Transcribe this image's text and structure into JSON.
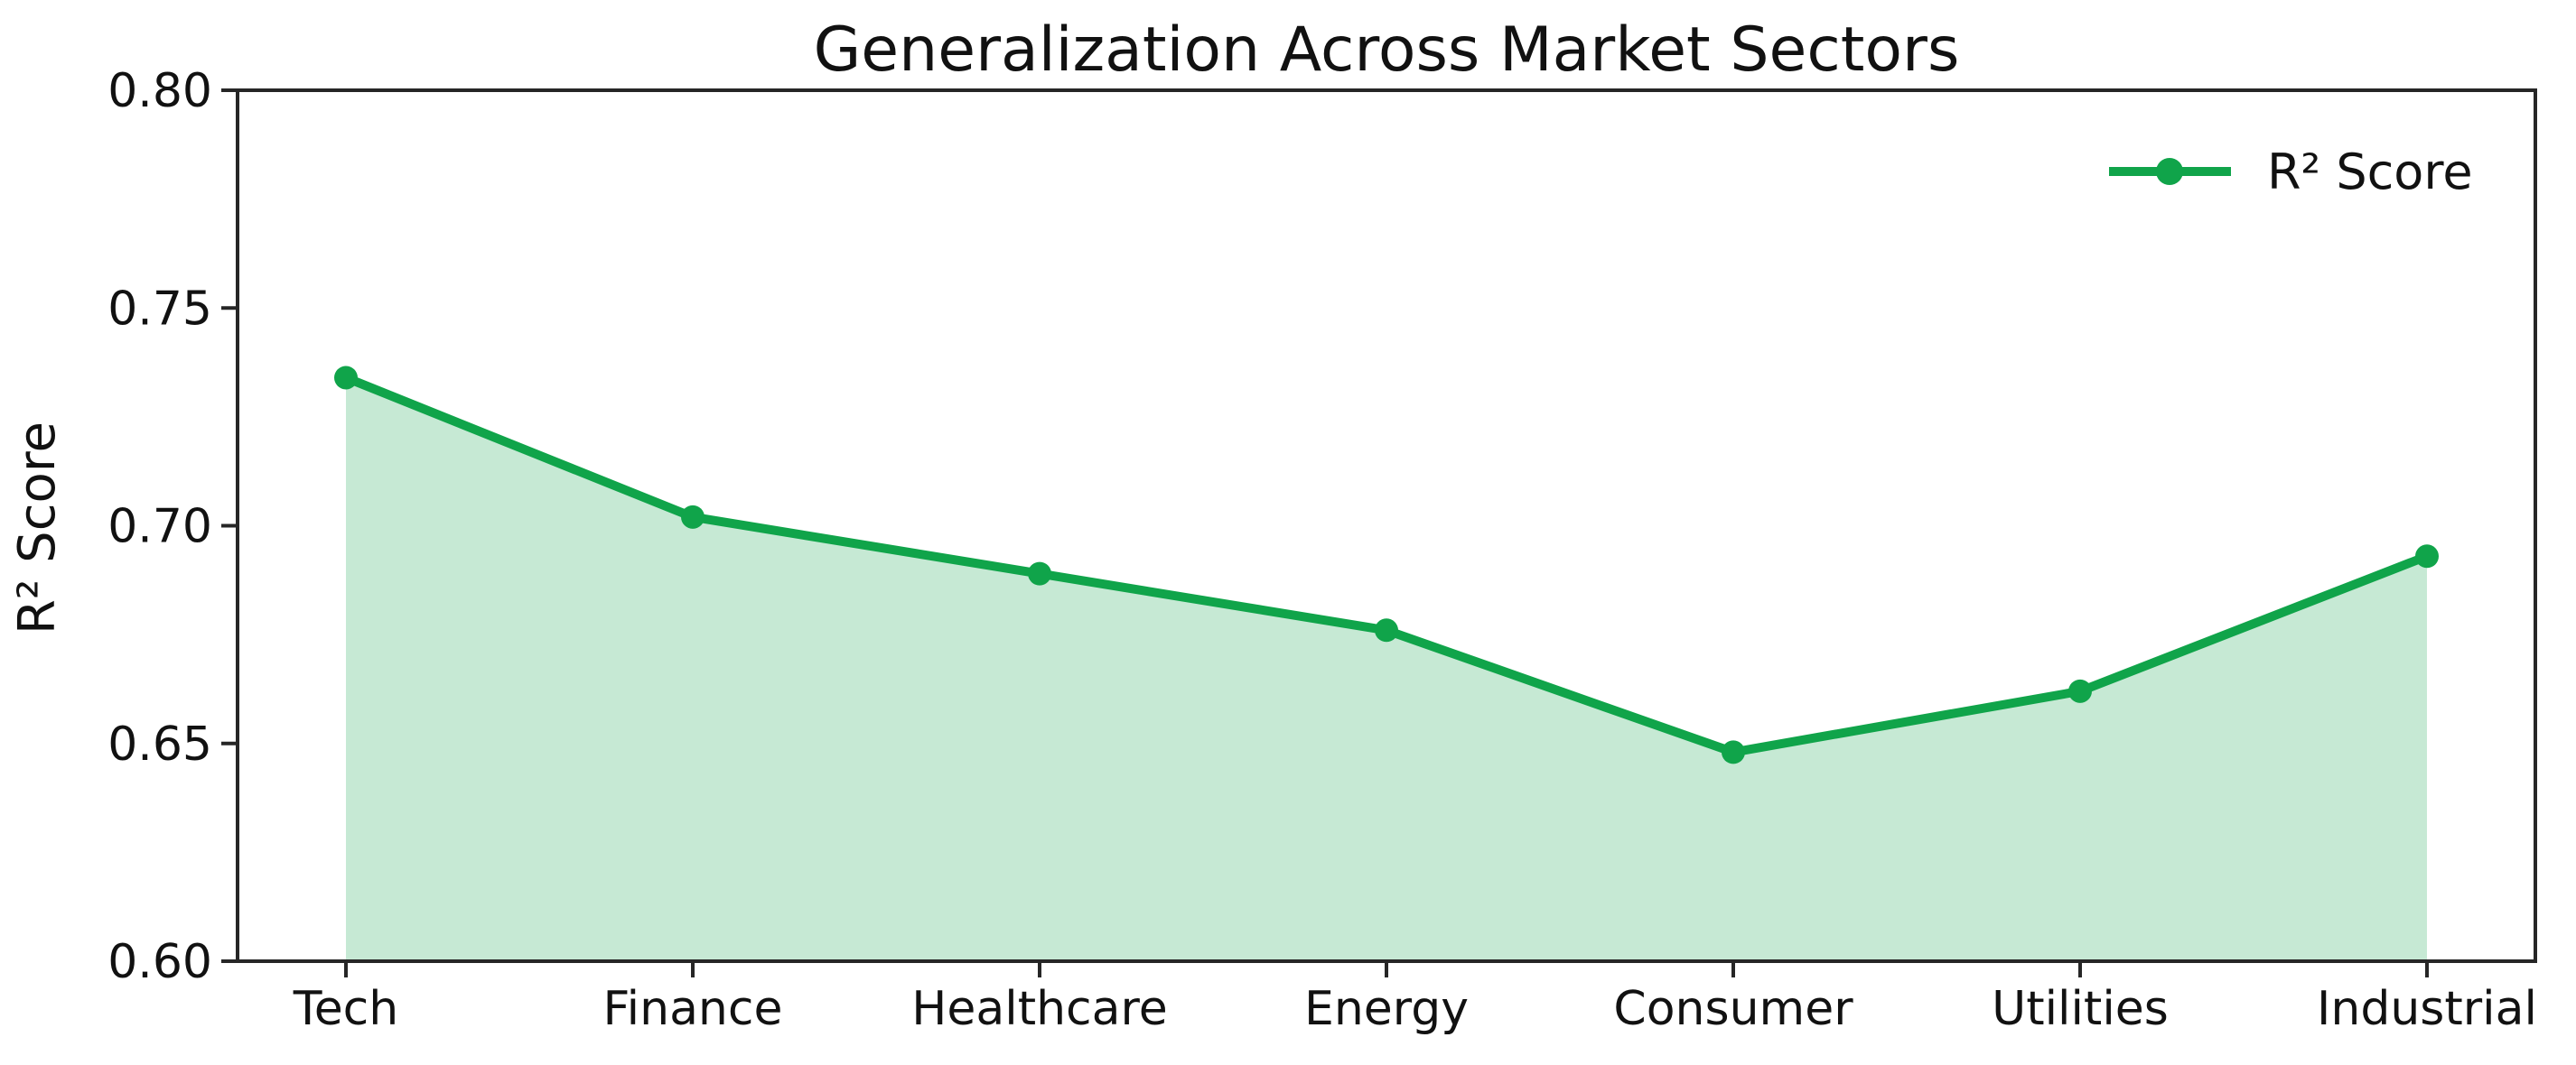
{
  "figure": {
    "background": "#ffffff"
  },
  "chart_data": {
    "type": "line",
    "title": "Generalization Across Market Sectors",
    "xlabel": "",
    "ylabel": "R² Score",
    "categories": [
      "Tech",
      "Finance",
      "Healthcare",
      "Energy",
      "Consumer",
      "Utilities",
      "Industrial"
    ],
    "series": [
      {
        "name": "R² Score",
        "values": [
          0.734,
          0.702,
          0.689,
          0.676,
          0.648,
          0.662,
          0.693
        ],
        "color": "#10a44a",
        "fill_to_baseline": true,
        "fill_opacity": 0.24,
        "marker": "circle"
      }
    ],
    "ylim": [
      0.6,
      0.8
    ],
    "yticks": [
      0.8,
      0.75,
      0.7,
      0.65,
      0.6
    ],
    "ytick_labels": [
      "0.80",
      "0.75",
      "0.70",
      "0.65",
      "0.60"
    ],
    "grid": false,
    "legend": {
      "position": "upper right",
      "entries": [
        "R² Score"
      ]
    }
  }
}
